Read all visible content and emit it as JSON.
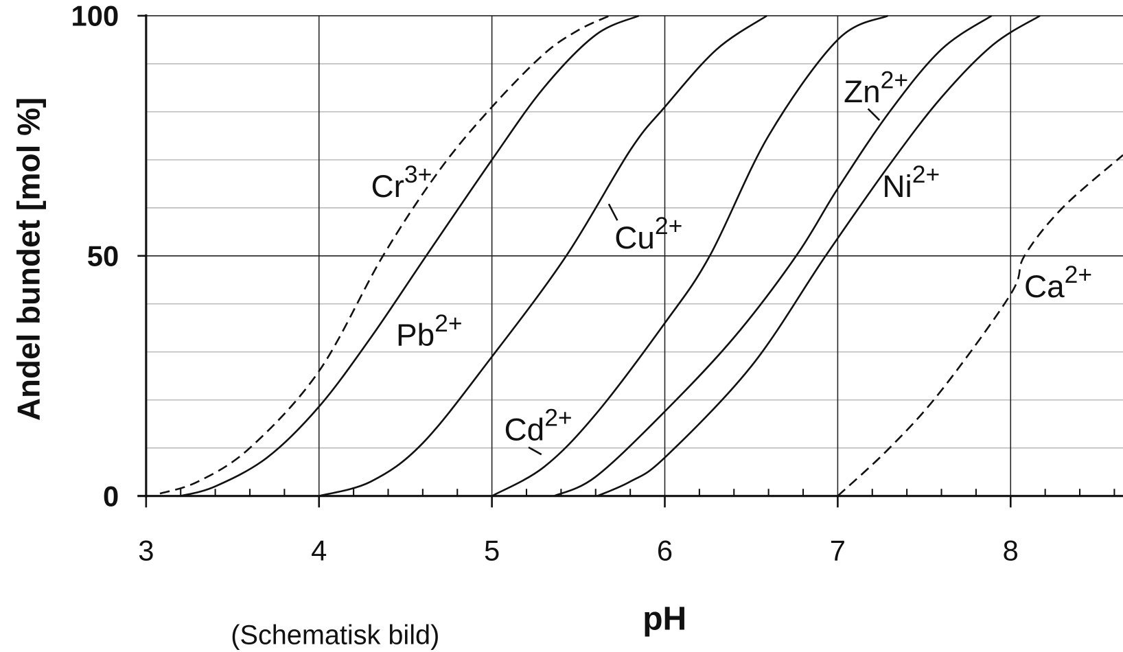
{
  "chart_data": {
    "type": "line",
    "xlabel": "pH",
    "ylabel": "Andel bundet [mol %]",
    "note": "(Schematisk bild)",
    "xlim": [
      3,
      8.65
    ],
    "ylim": [
      0,
      100
    ],
    "xticks": [
      3,
      4,
      5,
      6,
      7,
      8
    ],
    "yticks": [
      0,
      50,
      100
    ],
    "xminor_ticks": [
      3.2,
      3.4,
      3.6,
      3.8,
      4.2,
      4.4,
      4.6,
      4.8,
      5.2,
      5.4,
      5.6,
      5.8,
      6.2,
      6.4,
      6.6,
      6.8,
      7.2,
      7.4,
      7.6,
      7.8,
      8.2,
      8.4,
      8.6
    ],
    "yminor_ticks": [
      10,
      20,
      30,
      40,
      60,
      70,
      80,
      90
    ],
    "grid": true,
    "series": [
      {
        "name": "Cr",
        "charge": "3+",
        "color": "#111111",
        "dashed": true,
        "x": [
          3.08,
          3.3,
          3.6,
          4.0,
          4.37,
          4.7,
          5.0,
          5.3,
          5.5,
          5.68
        ],
        "values": [
          0.5,
          3,
          10,
          26,
          50,
          68,
          81,
          92,
          97,
          100
        ]
      },
      {
        "name": "Pb",
        "charge": "2+",
        "color": "#111111",
        "dashed": false,
        "x": [
          3.2,
          3.4,
          3.7,
          4.0,
          4.3,
          4.62,
          5.0,
          5.3,
          5.6,
          5.85
        ],
        "values": [
          0,
          2,
          8,
          18.6,
          33,
          50,
          70,
          85,
          96,
          100
        ]
      },
      {
        "name": "Cu",
        "charge": "2+",
        "color": "#111111",
        "dashed": false,
        "x": [
          4.0,
          4.3,
          4.6,
          5.0,
          5.43,
          5.8,
          6.0,
          6.3,
          6.59
        ],
        "values": [
          0,
          3,
          11,
          29,
          50,
          72,
          81,
          93,
          100
        ]
      },
      {
        "name": "Cd",
        "charge": "2+",
        "color": "#111111",
        "dashed": false,
        "x": [
          5.0,
          5.3,
          5.6,
          6.0,
          6.26,
          6.6,
          7.0,
          7.29
        ],
        "values": [
          0,
          6,
          17,
          36,
          50,
          75,
          95,
          100
        ]
      },
      {
        "name": "Zn",
        "charge": "2+",
        "color": "#111111",
        "dashed": false,
        "x": [
          5.36,
          5.6,
          6.0,
          6.4,
          6.76,
          7.0,
          7.3,
          7.6,
          7.89
        ],
        "values": [
          0,
          4,
          17.6,
          33,
          50,
          64,
          80,
          93,
          100
        ]
      },
      {
        "name": "Ni",
        "charge": "2+",
        "color": "#111111",
        "dashed": false,
        "x": [
          5.61,
          5.8,
          6.0,
          6.5,
          6.93,
          7.3,
          7.6,
          7.9,
          8.17
        ],
        "values": [
          0,
          3,
          8,
          27,
          50,
          69,
          83,
          94,
          100
        ]
      },
      {
        "name": "Ca",
        "charge": "2+",
        "color": "#111111",
        "dashed": true,
        "x": [
          7.0,
          7.3,
          7.6,
          8.0,
          8.08,
          8.3,
          8.65
        ],
        "values": [
          0,
          10,
          22,
          42,
          50,
          60,
          71
        ]
      }
    ]
  }
}
